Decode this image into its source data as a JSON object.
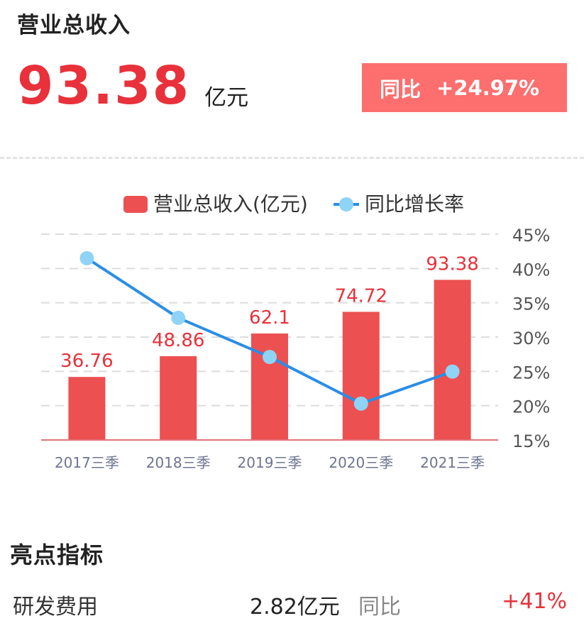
{
  "header": {
    "title": "营业总收入",
    "value": "93.38",
    "unit": "亿元",
    "yoy_label": "同比",
    "yoy_value": "+24.97%"
  },
  "chart_data": {
    "type": "bar",
    "categories": [
      "2017三季",
      "2018三季",
      "2019三季",
      "2020三季",
      "2021三季"
    ],
    "series": [
      {
        "name": "营业总收入(亿元)",
        "type": "bar",
        "values": [
          36.76,
          48.86,
          62.1,
          74.72,
          93.38
        ],
        "labels": [
          "36.76",
          "48.86",
          "62.1",
          "74.72",
          "93.38"
        ],
        "color": "#ec5050"
      },
      {
        "name": "同比增长率",
        "type": "line",
        "axis": "right",
        "values": [
          41.5,
          32.8,
          27.1,
          20.3,
          24.97
        ],
        "color": "#2a8ee6",
        "marker_color": "#8fd3f7"
      }
    ],
    "y_right_ticks": [
      "45%",
      "40%",
      "35%",
      "30%",
      "25%",
      "20%",
      "15%"
    ],
    "y_right_range": [
      15,
      45
    ],
    "bar_axis_range": [
      0,
      120
    ],
    "grid": true,
    "legend": "top"
  },
  "highlights": {
    "title": "亮点指标",
    "rows": [
      {
        "name": "研发费用",
        "value": "2.82亿元",
        "yoy_label": "同比",
        "change": "+41%"
      }
    ]
  },
  "colors": {
    "accent_red": "#e8313a",
    "badge": "#fd6e6e",
    "bar": "#ec5050",
    "line": "#2a8ee6",
    "marker": "#8fd3f7"
  }
}
